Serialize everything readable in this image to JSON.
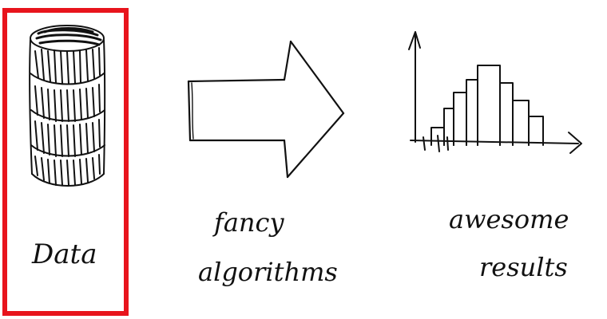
{
  "colors": {
    "ink": "#111111",
    "highlight": "#e8141c",
    "background": "#ffffff"
  },
  "panels": {
    "data": {
      "icon": "database-cylinder-icon",
      "label": "Data",
      "highlighted": true
    },
    "process": {
      "icon": "right-arrow-icon",
      "label_line1": "fancy",
      "label_line2": "algorithms"
    },
    "results": {
      "icon": "histogram-icon",
      "label_line1": "awesome",
      "label_line2": "results"
    }
  }
}
